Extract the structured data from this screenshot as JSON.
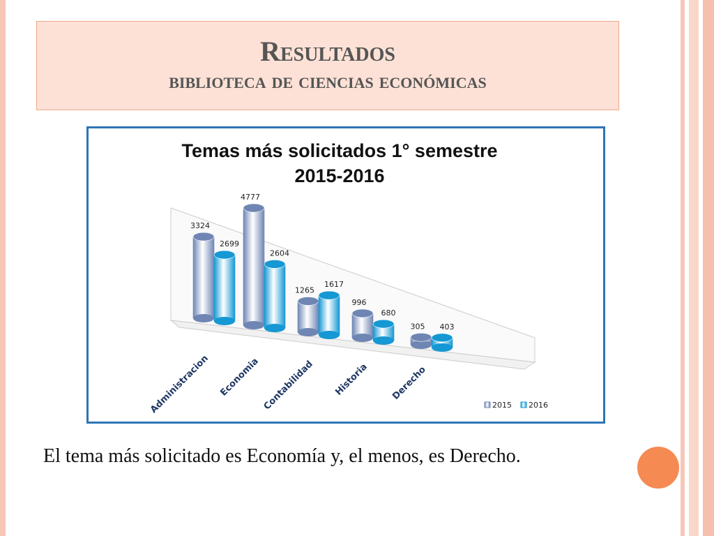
{
  "slide": {
    "title": "Resultados",
    "subtitle": "biblioteca de ciencias económicas",
    "caption": "El tema más solicitado es Economía y, el menos, es Derecho."
  },
  "chart_data": {
    "type": "bar",
    "title": "Temas más solicitados 1° semestre 2015-2016",
    "categories": [
      "Administracion",
      "Economia",
      "Contabilidad",
      "Historia",
      "Derecho"
    ],
    "series": [
      {
        "name": "2015",
        "color": "#6f86b4",
        "values": [
          3324,
          4777,
          1265,
          996,
          305
        ]
      },
      {
        "name": "2016",
        "color": "#1598d4",
        "values": [
          2699,
          2604,
          1617,
          680,
          403
        ]
      }
    ],
    "legend": "bottom-right"
  }
}
